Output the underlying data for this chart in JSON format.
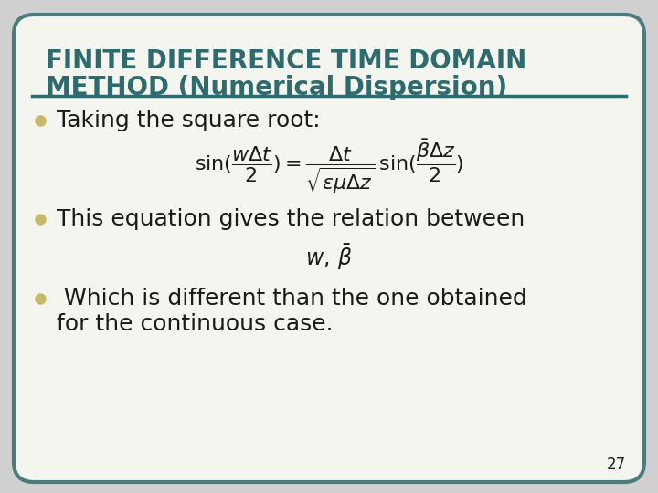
{
  "background_color": "#f5f5f0",
  "border_color": "#4a7c7e",
  "title_line1": "FINITE DIFFERENCE TIME DOMAIN",
  "title_line2": "METHOD (Numerical Dispersion)",
  "title_color": "#2e6b6e",
  "title_fontsize": 20,
  "bullet_color": "#c8b86a",
  "bullet1_text": "Taking the square root:",
  "bullet2_text": "This equation gives the relation between",
  "bullet3_line1": " Which is different than the one obtained",
  "bullet3_line2": "for the continuous case.",
  "bullet_fontsize": 18,
  "separator_color": "#2e6b6e",
  "page_number": "27",
  "text_color": "#1a1a1a",
  "eq1_fontsize": 16,
  "eq2_fontsize": 17,
  "outer_bg": "#d0d0d0"
}
